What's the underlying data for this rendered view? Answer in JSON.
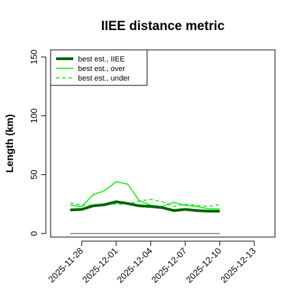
{
  "chart_data": {
    "type": "line",
    "title": "IIEE distance metric",
    "xlabel": "",
    "ylabel": "Length (km)",
    "x_tick_labels": [
      "2025-11-28",
      "2025-12-01",
      "2025-12-04",
      "2025-12-07",
      "2025-12-10",
      "2025-12-13"
    ],
    "x_tick_days": [
      0,
      3,
      6,
      9,
      12,
      15
    ],
    "xlim_days": [
      -2.7,
      16.8
    ],
    "ylim": [
      -3,
      156
    ],
    "y_ticks": [
      0,
      50,
      100,
      150
    ],
    "grid": false,
    "legend_position": "top-left",
    "reference_line": {
      "y": 0,
      "x_start_day": -1,
      "x_end_day": 12,
      "color": "#555555"
    },
    "x_days": [
      -1,
      0,
      1,
      2,
      3,
      4,
      5,
      6,
      7,
      8,
      9,
      10,
      11,
      12
    ],
    "series": [
      {
        "name": "best est., IIEE",
        "color": "#006400",
        "style": "solid",
        "width": 4,
        "values": [
          20,
          20.5,
          23.5,
          24.5,
          27,
          25.5,
          23.5,
          23,
          22,
          19.5,
          20.5,
          19.5,
          19,
          19
        ]
      },
      {
        "name": "best est., over",
        "color": "#00ee00",
        "style": "solid",
        "width": 1.5,
        "values": [
          24,
          23,
          33,
          36.5,
          44,
          42,
          28,
          24,
          23,
          26.5,
          24,
          23,
          21,
          21
        ]
      },
      {
        "name": "best est., under",
        "color": "#00ee00",
        "style": "dashed",
        "width": 1.5,
        "values": [
          26,
          24,
          24,
          24.5,
          25,
          25,
          27.5,
          29,
          27,
          23,
          25,
          24,
          23,
          24.5
        ]
      }
    ]
  }
}
